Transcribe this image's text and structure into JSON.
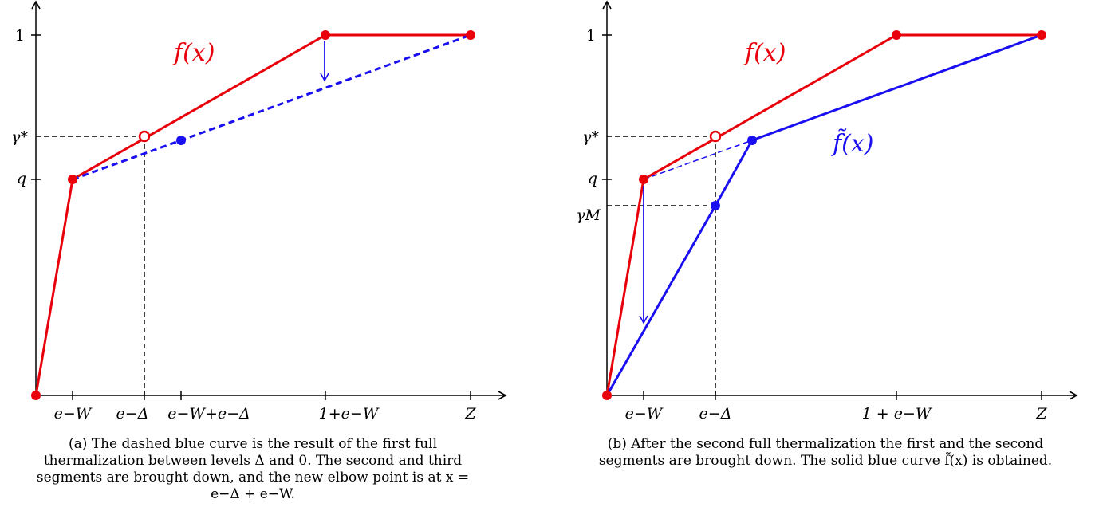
{
  "panel_a": {
    "y_ticks": {
      "one": "1",
      "gamma_star": "γ*",
      "q": "q"
    },
    "x_ticks": {
      "e_minus_W": "e−W",
      "e_minus_Delta": "e−Δ",
      "sum": "e−W+e−Δ",
      "one_plus": "1+e−W",
      "Z": "Z"
    },
    "function_label": "f(x)",
    "caption": "(a) The dashed blue curve is the result of the first full thermalization between levels Δ and 0. The second and third segments are brought down, and the new elbow point is at x = e−Δ + e−W."
  },
  "panel_b": {
    "y_ticks": {
      "one": "1",
      "gamma_star": "γ*",
      "q": "q",
      "gamma_M": "γM"
    },
    "x_ticks": {
      "e_minus_W": "e−W",
      "e_minus_Delta": "e−Δ",
      "one_plus": "1 + e−W",
      "Z": "Z"
    },
    "function_label": "f(x)",
    "blue_function_label": "f̃(x)",
    "caption": "(b) After the second full thermalization the first and the second segments are brought down. The solid blue curve f̃(x) is obtained."
  },
  "colors": {
    "red": "#e8000b",
    "blue": "#1a0ff0"
  }
}
